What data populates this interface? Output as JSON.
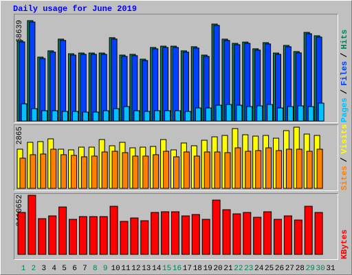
{
  "chart_data": {
    "type": "bar",
    "title": "Daily usage for June 2019",
    "categories": [
      "1",
      "2",
      "3",
      "4",
      "5",
      "6",
      "7",
      "8",
      "9",
      "10",
      "11",
      "12",
      "13",
      "14",
      "15",
      "16",
      "17",
      "18",
      "19",
      "20",
      "21",
      "22",
      "23",
      "24",
      "25",
      "26",
      "27",
      "28",
      "29",
      "30",
      "31"
    ],
    "label_colors": [
      "#00805c",
      "#00805c",
      "#000000",
      "#000000",
      "#000000",
      "#000000",
      "#000000",
      "#00805c",
      "#00805c",
      "#000000",
      "#000000",
      "#000000",
      "#000000",
      "#000000",
      "#00805c",
      "#00805c",
      "#000000",
      "#000000",
      "#000000",
      "#000000",
      "#000000",
      "#00805c",
      "#00805c",
      "#000000",
      "#000000",
      "#000000",
      "#000000",
      "#000000",
      "#00805c",
      "#00805c",
      "#000000"
    ],
    "legend_separator": "/",
    "panels": [
      {
        "ylim": [
          0,
          68639
        ],
        "yticks": [
          68639
        ],
        "series": [
          {
            "name": "Hits",
            "color": "#00805c",
            "values": [
              55000,
              68639,
              43700,
              48000,
              56000,
              46000,
              46500,
              46500,
              46500,
              57000,
              45100,
              45600,
              42300,
              50300,
              51200,
              51200,
              48000,
              50800,
              45100,
              66300,
              56000,
              53100,
              54000,
              49400,
              53600,
              46500,
              51700,
              47500,
              60600,
              58300,
              null
            ]
          },
          {
            "name": "Files",
            "color": "#0040ff",
            "values": [
              54100,
              67700,
              42800,
              47100,
              55100,
              45100,
              45600,
              45600,
              45600,
              56100,
              44200,
              44700,
              41400,
              49400,
              50300,
              50300,
              47100,
              49900,
              44200,
              65400,
              55100,
              52200,
              53100,
              48500,
              52700,
              45600,
              50800,
              46600,
              59700,
              57400,
              null
            ]
          },
          {
            "name": "Pages",
            "color": "#00c0ff",
            "values": [
              11750,
              8460,
              7050,
              7050,
              6580,
              6580,
              6110,
              6110,
              7050,
              8460,
              9870,
              7050,
              6580,
              7050,
              7050,
              7050,
              6580,
              8930,
              8930,
              10800,
              11280,
              10800,
              9870,
              10340,
              11280,
              8930,
              9870,
              10340,
              9870,
              12220,
              null
            ]
          }
        ]
      },
      {
        "ylim": [
          0,
          2865
        ],
        "yticks": [
          2865
        ],
        "series": [
          {
            "name": "Visits",
            "color": "#ffff00",
            "values": [
              1835,
              2157,
              2190,
              2318,
              1835,
              1803,
              1931,
              1931,
              2286,
              1996,
              2157,
              1899,
              1931,
              1964,
              2286,
              1803,
              2125,
              1996,
              2254,
              2414,
              2479,
              2800,
              2511,
              2447,
              2479,
              2350,
              2704,
              2865,
              2543,
              2479,
              null
            ]
          },
          {
            "name": "Sites",
            "color": "#ff8000",
            "values": [
              1416,
              1577,
              1610,
              1835,
              1577,
              1545,
              1480,
              1513,
              1706,
              1738,
              1674,
              1513,
              1513,
              1577,
              1738,
              1480,
              1706,
              1513,
              1706,
              1706,
              1674,
              1899,
              1738,
              1770,
              1899,
              1770,
              1835,
              1835,
              1738,
              1835,
              null
            ]
          }
        ]
      },
      {
        "ylim": [
          0,
          3410652
        ],
        "yticks": [
          3410652
        ],
        "series": [
          {
            "name": "KBytes",
            "color": "#ff0000",
            "values": [
              2419000,
              3410652,
              2062000,
              2221000,
              2736000,
              2022000,
              2181000,
              2181000,
              2181000,
              2776000,
              1904000,
              2102000,
              1943000,
              2419000,
              2459000,
              2459000,
              2221000,
              2300000,
              2022000,
              3133000,
              2578000,
              2340000,
              2419000,
              2141000,
              2459000,
              2022000,
              2221000,
              1983000,
              2776000,
              2419000,
              null
            ]
          }
        ]
      }
    ]
  }
}
